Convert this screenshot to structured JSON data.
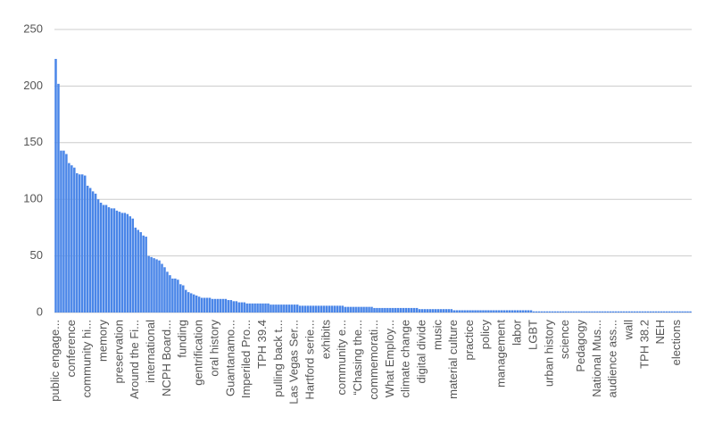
{
  "chart_data": {
    "type": "bar",
    "color": "#4a86e8",
    "grid": true,
    "ylim": [
      0,
      250
    ],
    "yticks": [
      0,
      50,
      100,
      150,
      200,
      250
    ],
    "categories": [
      "public engage...",
      null,
      null,
      null,
      null,
      null,
      "conference",
      null,
      null,
      null,
      null,
      null,
      "community hi...",
      null,
      null,
      null,
      null,
      null,
      "memory",
      null,
      null,
      null,
      null,
      null,
      "preservation",
      null,
      null,
      null,
      null,
      null,
      "Around the Fi...",
      null,
      null,
      null,
      null,
      null,
      "international",
      null,
      null,
      null,
      null,
      null,
      "NCPH Board...",
      null,
      null,
      null,
      null,
      null,
      "funding",
      null,
      null,
      null,
      null,
      null,
      "gentrification",
      null,
      null,
      null,
      null,
      null,
      "oral history",
      null,
      null,
      null,
      null,
      null,
      "Guantanamo...",
      null,
      null,
      null,
      null,
      null,
      "Imperiled Pro...",
      null,
      null,
      null,
      null,
      null,
      "TPH 39.4",
      null,
      null,
      null,
      null,
      null,
      "pulling back t...",
      null,
      null,
      null,
      null,
      null,
      "Las Vegas Ser...",
      null,
      null,
      null,
      null,
      null,
      "Hartford serie...",
      null,
      null,
      null,
      null,
      null,
      "exhibits",
      null,
      null,
      null,
      null,
      null,
      "community e...",
      null,
      null,
      null,
      null,
      null,
      "“Chasing the...",
      null,
      null,
      null,
      null,
      null,
      "commemorati...",
      null,
      null,
      null,
      null,
      null,
      "What Employ...",
      null,
      null,
      null,
      null,
      null,
      "climate change",
      null,
      null,
      null,
      null,
      null,
      "digital divide",
      null,
      null,
      null,
      null,
      null,
      "music",
      null,
      null,
      null,
      null,
      null,
      "material culture",
      null,
      null,
      null,
      null,
      null,
      "practice",
      null,
      null,
      null,
      null,
      null,
      "policy",
      null,
      null,
      null,
      null,
      null,
      "management",
      null,
      null,
      null,
      null,
      null,
      "labor",
      null,
      null,
      null,
      null,
      null,
      "LGBT",
      null,
      null,
      null,
      null,
      null,
      "urban history",
      null,
      null,
      null,
      null,
      null,
      "science",
      null,
      null,
      null,
      null,
      null,
      "Pedagogy",
      null,
      null,
      null,
      null,
      null,
      "National Mus...",
      null,
      null,
      null,
      null,
      null,
      "audience ass...",
      null,
      null,
      null,
      null,
      null,
      "wall",
      null,
      null,
      null,
      null,
      null,
      "TPH 38.2",
      null,
      null,
      null,
      null,
      null,
      "NEH",
      null,
      null,
      null,
      null,
      null,
      "elections",
      null,
      null,
      null,
      null,
      null
    ],
    "values": [
      224,
      202,
      143,
      143,
      140,
      132,
      130,
      128,
      123,
      122,
      122,
      121,
      112,
      110,
      107,
      105,
      100,
      97,
      95,
      95,
      93,
      92,
      92,
      90,
      89,
      88,
      88,
      87,
      85,
      83,
      75,
      73,
      71,
      68,
      67,
      50,
      49,
      48,
      47,
      46,
      43,
      40,
      36,
      33,
      30,
      30,
      29,
      25,
      24,
      20,
      18,
      17,
      16,
      15,
      14,
      13,
      13,
      13,
      13,
      12,
      12,
      12,
      12,
      12,
      12,
      11,
      11,
      10,
      10,
      9,
      9,
      9,
      8,
      8,
      8,
      8,
      8,
      8,
      8,
      8,
      8,
      7,
      7,
      7,
      7,
      7,
      7,
      7,
      7,
      7,
      7,
      7,
      6,
      6,
      6,
      6,
      6,
      6,
      6,
      6,
      6,
      6,
      6,
      6,
      6,
      6,
      6,
      6,
      6,
      5,
      5,
      5,
      5,
      5,
      5,
      5,
      5,
      5,
      5,
      5,
      4,
      4,
      4,
      4,
      4,
      4,
      4,
      4,
      4,
      4,
      4,
      4,
      4,
      4,
      4,
      4,
      4,
      3,
      3,
      3,
      3,
      3,
      3,
      3,
      3,
      3,
      3,
      3,
      3,
      3,
      2,
      2,
      2,
      2,
      2,
      2,
      2,
      2,
      2,
      2,
      2,
      2,
      2,
      2,
      2,
      2,
      2,
      2,
      2,
      2,
      2,
      2,
      2,
      2,
      2,
      2,
      2,
      2,
      2,
      2,
      1,
      1,
      1,
      1,
      1,
      1,
      1,
      1,
      1,
      1,
      1,
      1,
      1,
      1,
      1,
      1,
      1,
      1,
      1,
      1,
      1,
      1,
      1,
      1,
      1,
      1,
      1,
      1,
      1,
      1,
      1,
      1,
      1,
      1,
      1,
      1,
      1,
      1,
      1,
      1,
      1,
      1,
      1,
      1,
      1,
      1,
      1,
      1,
      1,
      1,
      1,
      1,
      1,
      1,
      1,
      1,
      1,
      1,
      1,
      1
    ]
  }
}
